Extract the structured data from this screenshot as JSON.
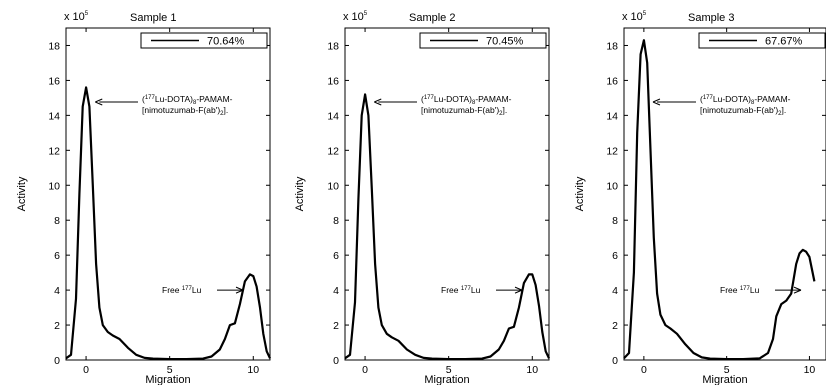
{
  "chart_data": [
    {
      "type": "line",
      "title": "Sample 1",
      "multiplier": {
        "base": "x 10",
        "exp": "5"
      },
      "xlabel": "Migration",
      "ylabel": "Activity",
      "xlim": [
        -1.2,
        11
      ],
      "ylim": [
        0,
        19
      ],
      "xticks": [
        0,
        5,
        10
      ],
      "yticks": [
        0,
        2,
        4,
        6,
        8,
        10,
        12,
        14,
        16,
        18
      ],
      "legend": {
        "text": "70.64%",
        "position": "top-right"
      },
      "annotations": {
        "complex": {
          "sup": "177",
          "line1a": "(",
          "line1b": "Lu-DOTA)",
          "sub": "8",
          "line1c": "-PAMAM-",
          "line2a": "[nimotuzumab-F(ab')",
          "sub2": "2",
          "line2b": "]."
        },
        "free": {
          "prefix": "Free ",
          "sup": "177",
          "suffix": "Lu"
        }
      },
      "series": [
        {
          "x": [
            -1.2,
            -0.9,
            -0.6,
            -0.4,
            -0.2,
            0,
            0.2,
            0.4,
            0.6,
            0.8,
            1,
            1.3,
            1.6,
            2,
            2.5,
            3,
            3.5,
            4,
            5,
            6,
            7,
            7.5,
            8,
            8.3,
            8.6,
            8.9,
            9.2,
            9.5,
            9.8,
            10,
            10.2,
            10.4,
            10.6,
            10.8,
            11
          ],
          "y": [
            0.1,
            0.3,
            3.5,
            9.5,
            14.5,
            15.6,
            14.5,
            10,
            5.5,
            3,
            2,
            1.6,
            1.4,
            1.2,
            0.7,
            0.3,
            0.12,
            0.08,
            0.05,
            0.05,
            0.08,
            0.2,
            0.6,
            1.2,
            2,
            2.1,
            3.2,
            4.5,
            4.9,
            4.8,
            4.2,
            3,
            1.5,
            0.5,
            0.1
          ]
        }
      ]
    },
    {
      "type": "line",
      "title": "Sample 2",
      "multiplier": {
        "base": "x 10",
        "exp": "5"
      },
      "xlabel": "Migration",
      "ylabel": "Activity",
      "xlim": [
        -1.2,
        11
      ],
      "ylim": [
        0,
        19
      ],
      "xticks": [
        0,
        5,
        10
      ],
      "yticks": [
        0,
        2,
        4,
        6,
        8,
        10,
        12,
        14,
        16,
        18
      ],
      "legend": {
        "text": "70.45%",
        "position": "top-right"
      },
      "annotations": {
        "complex": {
          "sup": "177",
          "line1a": "(",
          "line1b": "Lu-DOTA)",
          "sub": "8",
          "line1c": "-PAMAM-",
          "line2a": "[nimotuzumab-F(ab')",
          "sub2": "2",
          "line2b": "]."
        },
        "free": {
          "prefix": "Free ",
          "sup": "177",
          "suffix": "Lu"
        }
      },
      "series": [
        {
          "x": [
            -1.2,
            -0.9,
            -0.6,
            -0.4,
            -0.2,
            0,
            0.2,
            0.4,
            0.6,
            0.8,
            1,
            1.3,
            1.6,
            2,
            2.5,
            3,
            3.5,
            4,
            5,
            6,
            7,
            7.5,
            8,
            8.3,
            8.6,
            8.9,
            9.2,
            9.5,
            9.8,
            10,
            10.2,
            10.4,
            10.6,
            10.8,
            11
          ],
          "y": [
            0.1,
            0.3,
            3.3,
            9.2,
            14,
            15.2,
            14,
            9.8,
            5.5,
            3,
            2,
            1.5,
            1.3,
            1.1,
            0.6,
            0.3,
            0.12,
            0.08,
            0.05,
            0.05,
            0.08,
            0.2,
            0.6,
            1.1,
            1.8,
            1.9,
            3,
            4.4,
            4.9,
            4.9,
            4.3,
            3.1,
            1.6,
            0.5,
            0.1
          ]
        }
      ]
    },
    {
      "type": "line",
      "title": "Sample 3",
      "multiplier": {
        "base": "x 10",
        "exp": "5"
      },
      "xlabel": "Migration",
      "ylabel": "Activity",
      "xlim": [
        -1.2,
        11
      ],
      "ylim": [
        0,
        19
      ],
      "xticks": [
        0,
        5,
        10
      ],
      "yticks": [
        0,
        2,
        4,
        6,
        8,
        10,
        12,
        14,
        16,
        18
      ],
      "legend": {
        "text": "67.67%",
        "position": "top-right"
      },
      "annotations": {
        "complex": {
          "sup": "177",
          "line1a": "(",
          "line1b": "Lu-DOTA)",
          "sub": "8",
          "line1c": "-PAMAM-",
          "line2a": "[nimotuzumab-F(ab')",
          "sub2": "2",
          "line2b": "]."
        },
        "free": {
          "prefix": "Free ",
          "sup": "177",
          "suffix": "Lu"
        }
      },
      "series": [
        {
          "x": [
            -1.2,
            -0.9,
            -0.6,
            -0.4,
            -0.2,
            0,
            0.2,
            0.4,
            0.6,
            0.8,
            1,
            1.3,
            1.6,
            2,
            2.5,
            3,
            3.5,
            4,
            5,
            6,
            7,
            7.5,
            7.8,
            8,
            8.3,
            8.6,
            8.9,
            9.2,
            9.4,
            9.6,
            9.8,
            10,
            10.3
          ],
          "y": [
            0.1,
            0.4,
            5,
            13,
            17.5,
            18.3,
            17,
            12,
            7,
            3.8,
            2.6,
            2,
            1.8,
            1.5,
            0.9,
            0.4,
            0.15,
            0.08,
            0.05,
            0.05,
            0.1,
            0.4,
            1.2,
            2.5,
            3.2,
            3.4,
            3.8,
            5.5,
            6.1,
            6.3,
            6.2,
            5.9,
            4.5
          ]
        }
      ]
    }
  ]
}
